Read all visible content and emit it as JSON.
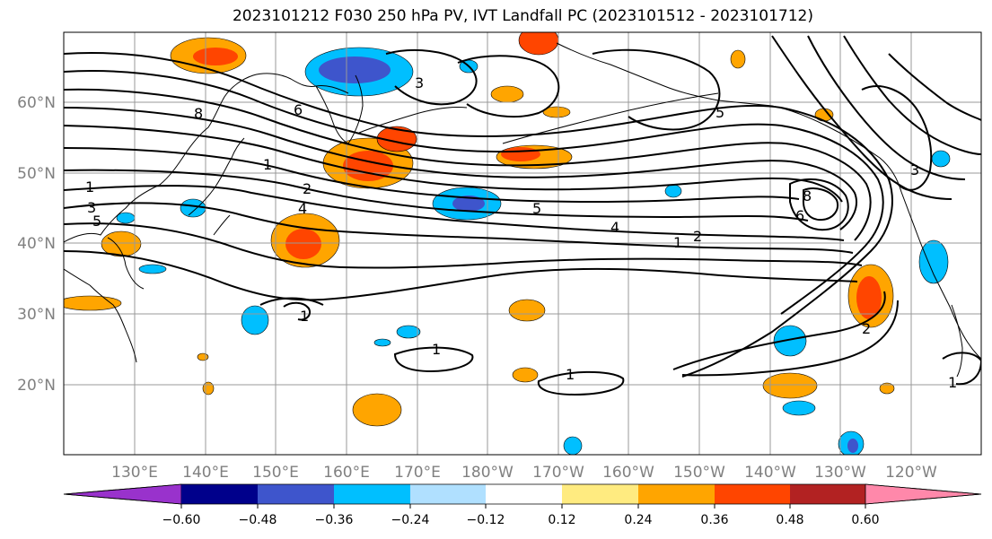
{
  "title": "2023101212 F030 250 hPa PV, IVT Landfall PC (2023101512 - 2023101712)",
  "map": {
    "lat_labels": [
      "60°N",
      "50°N",
      "40°N",
      "30°N",
      "20°N"
    ],
    "lon_labels": [
      "130°E",
      "140°E",
      "150°E",
      "160°E",
      "170°E",
      "180°W",
      "170°W",
      "160°W",
      "150°W",
      "140°W",
      "130°W",
      "120°W"
    ],
    "contour_labels": [
      "1",
      "3",
      "5",
      "1",
      "2",
      "4",
      "3",
      "6",
      "8",
      "5",
      "4",
      "1",
      "2",
      "6",
      "8",
      "3",
      "5",
      "1",
      "1",
      "2",
      "1",
      "1"
    ],
    "colors": {
      "pos_light": "#ffe680",
      "pos_mid": "#ffa500",
      "pos_strong": "#ff4500",
      "neg_light": "#aee0ff",
      "neg_mid": "#00bfff",
      "neg_strong": "#3e55cc"
    }
  },
  "colorbar": {
    "ticks": [
      "−0.60",
      "−0.48",
      "−0.36",
      "−0.24",
      "−0.12",
      "0.12",
      "0.24",
      "0.36",
      "0.48",
      "0.60"
    ],
    "colors": [
      "#9932cc",
      "#00008b",
      "#3e55cc",
      "#00bfff",
      "#b0e0ff",
      "#ffffff",
      "#ffeb80",
      "#ffa500",
      "#ff4500",
      "#b22222",
      "#ff88aa"
    ]
  }
}
